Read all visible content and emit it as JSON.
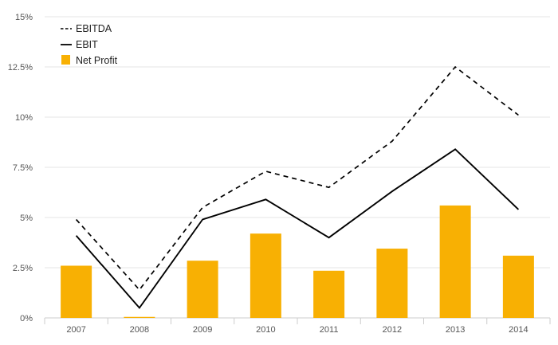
{
  "chart_data": {
    "type": "bar",
    "categories": [
      "2007",
      "2008",
      "2009",
      "2010",
      "2011",
      "2012",
      "2013",
      "2014"
    ],
    "series": [
      {
        "name": "EBITDA",
        "type": "line",
        "style": "dashed",
        "color": "#000000",
        "values": [
          4.9,
          1.4,
          5.5,
          7.3,
          6.5,
          8.8,
          12.5,
          10.1
        ]
      },
      {
        "name": "EBIT",
        "type": "line",
        "style": "solid",
        "color": "#000000",
        "values": [
          4.1,
          0.5,
          4.9,
          5.9,
          4.0,
          6.3,
          8.4,
          5.4
        ]
      },
      {
        "name": "Net Profit",
        "type": "bar",
        "color": "#F8B003",
        "values": [
          2.6,
          0.05,
          2.85,
          4.2,
          2.35,
          3.45,
          5.6,
          3.1
        ]
      }
    ],
    "yticks": [
      "0%",
      "2.5%",
      "5%",
      "7.5%",
      "10%",
      "12.5%",
      "15%"
    ],
    "ylim": [
      0,
      15
    ],
    "grid": true,
    "legend_position": "top-left"
  }
}
